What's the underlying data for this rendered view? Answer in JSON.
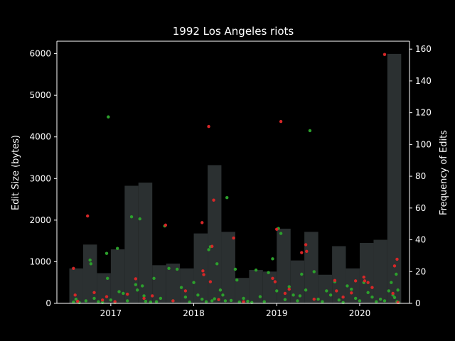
{
  "chart_data": {
    "type": "bar",
    "title": "1992 Los Angeles riots",
    "ylabel_left": "Edit Size (bytes)",
    "ylabel_right": "Frequency of Edits",
    "xlim": [
      2016.35,
      2020.6
    ],
    "ylim_left": [
      0,
      6300
    ],
    "ylim_right": [
      0,
      165
    ],
    "x_ticks": [
      2017,
      2018,
      2019,
      2020
    ],
    "y_ticks_left": [
      0,
      1000,
      2000,
      3000,
      4000,
      5000,
      6000
    ],
    "y_ticks_right": [
      0,
      20,
      40,
      60,
      80,
      100,
      120,
      140,
      160
    ],
    "bar_color": "#2b3031",
    "grid": false,
    "histogram": {
      "name": "Frequency of Edits",
      "bin_edges": [
        2016.5,
        2016.667,
        2016.833,
        2017.0,
        2017.167,
        2017.333,
        2017.5,
        2017.667,
        2017.833,
        2018.0,
        2018.167,
        2018.333,
        2018.5,
        2018.667,
        2018.833,
        2019.0,
        2019.167,
        2019.333,
        2019.5,
        2019.667,
        2019.833,
        2020.0,
        2020.167,
        2020.333,
        2020.5
      ],
      "counts": [
        22,
        37,
        19,
        34,
        74,
        76,
        24,
        25,
        22,
        44,
        87,
        45,
        16,
        21,
        20,
        47,
        27,
        45,
        18,
        36,
        22,
        38,
        40,
        157
      ]
    },
    "series": [
      {
        "name": "",
        "color": "#2ca02c",
        "points": [
          [
            2016.55,
            30
          ],
          [
            2016.58,
            100
          ],
          [
            2016.62,
            20
          ],
          [
            2016.7,
            60
          ],
          [
            2016.75,
            1040
          ],
          [
            2016.76,
            950
          ],
          [
            2016.8,
            120
          ],
          [
            2016.85,
            40
          ],
          [
            2016.9,
            20
          ],
          [
            2016.95,
            1200
          ],
          [
            2016.96,
            600
          ],
          [
            2016.97,
            4480
          ],
          [
            2017.0,
            80
          ],
          [
            2017.05,
            20
          ],
          [
            2017.08,
            1320
          ],
          [
            2017.1,
            280
          ],
          [
            2017.15,
            240
          ],
          [
            2017.2,
            60
          ],
          [
            2017.25,
            2080
          ],
          [
            2017.3,
            450
          ],
          [
            2017.32,
            320
          ],
          [
            2017.35,
            2030
          ],
          [
            2017.38,
            420
          ],
          [
            2017.4,
            180
          ],
          [
            2017.42,
            50
          ],
          [
            2017.48,
            30
          ],
          [
            2017.52,
            600
          ],
          [
            2017.55,
            40
          ],
          [
            2017.6,
            120
          ],
          [
            2017.65,
            1860
          ],
          [
            2017.7,
            840
          ],
          [
            2017.75,
            60
          ],
          [
            2017.8,
            820
          ],
          [
            2017.85,
            380
          ],
          [
            2017.9,
            150
          ],
          [
            2017.95,
            30
          ],
          [
            2018.0,
            500
          ],
          [
            2018.05,
            200
          ],
          [
            2018.1,
            100
          ],
          [
            2018.15,
            40
          ],
          [
            2018.18,
            1290
          ],
          [
            2018.2,
            1360
          ],
          [
            2018.22,
            60
          ],
          [
            2018.25,
            110
          ],
          [
            2018.28,
            950
          ],
          [
            2018.32,
            320
          ],
          [
            2018.35,
            200
          ],
          [
            2018.38,
            60
          ],
          [
            2018.4,
            2540
          ],
          [
            2018.45,
            70
          ],
          [
            2018.5,
            820
          ],
          [
            2018.52,
            560
          ],
          [
            2018.55,
            30
          ],
          [
            2018.6,
            120
          ],
          [
            2018.65,
            50
          ],
          [
            2018.7,
            20
          ],
          [
            2018.75,
            800
          ],
          [
            2018.8,
            160
          ],
          [
            2018.85,
            40
          ],
          [
            2018.9,
            740
          ],
          [
            2018.95,
            1070
          ],
          [
            2019.0,
            300
          ],
          [
            2019.02,
            1800
          ],
          [
            2019.05,
            1680
          ],
          [
            2019.1,
            90
          ],
          [
            2019.15,
            400
          ],
          [
            2019.2,
            200
          ],
          [
            2019.25,
            60
          ],
          [
            2019.28,
            180
          ],
          [
            2019.3,
            700
          ],
          [
            2019.35,
            320
          ],
          [
            2019.4,
            4150
          ],
          [
            2019.45,
            760
          ],
          [
            2019.5,
            100
          ],
          [
            2019.55,
            40
          ],
          [
            2019.6,
            300
          ],
          [
            2019.65,
            200
          ],
          [
            2019.7,
            520
          ],
          [
            2019.75,
            80
          ],
          [
            2019.8,
            20
          ],
          [
            2019.85,
            420
          ],
          [
            2019.9,
            340
          ],
          [
            2019.95,
            120
          ],
          [
            2020.0,
            60
          ],
          [
            2020.05,
            500
          ],
          [
            2020.1,
            260
          ],
          [
            2020.15,
            150
          ],
          [
            2020.2,
            40
          ],
          [
            2020.25,
            100
          ],
          [
            2020.3,
            60
          ],
          [
            2020.35,
            300
          ],
          [
            2020.38,
            500
          ],
          [
            2020.4,
            200
          ],
          [
            2020.42,
            140
          ],
          [
            2020.44,
            700
          ],
          [
            2020.45,
            40
          ],
          [
            2020.46,
            320
          ],
          [
            2020.47,
            20
          ]
        ]
      },
      {
        "name": "",
        "color": "#d62728",
        "points": [
          [
            2016.55,
            840
          ],
          [
            2016.57,
            200
          ],
          [
            2016.6,
            50
          ],
          [
            2016.72,
            2100
          ],
          [
            2016.8,
            260
          ],
          [
            2016.9,
            80
          ],
          [
            2016.95,
            160
          ],
          [
            2017.05,
            40
          ],
          [
            2017.2,
            220
          ],
          [
            2017.3,
            590
          ],
          [
            2017.4,
            120
          ],
          [
            2017.5,
            180
          ],
          [
            2017.66,
            1880
          ],
          [
            2017.75,
            60
          ],
          [
            2017.9,
            300
          ],
          [
            2018.1,
            1940
          ],
          [
            2018.11,
            780
          ],
          [
            2018.12,
            690
          ],
          [
            2018.18,
            4250
          ],
          [
            2018.2,
            520
          ],
          [
            2018.22,
            1370
          ],
          [
            2018.24,
            2480
          ],
          [
            2018.3,
            90
          ],
          [
            2018.48,
            1570
          ],
          [
            2018.6,
            40
          ],
          [
            2018.95,
            600
          ],
          [
            2018.98,
            520
          ],
          [
            2019.0,
            1780
          ],
          [
            2019.05,
            4370
          ],
          [
            2019.1,
            240
          ],
          [
            2019.15,
            340
          ],
          [
            2019.3,
            1220
          ],
          [
            2019.35,
            1410
          ],
          [
            2019.36,
            1250
          ],
          [
            2019.45,
            100
          ],
          [
            2019.7,
            550
          ],
          [
            2019.72,
            300
          ],
          [
            2019.8,
            150
          ],
          [
            2019.9,
            250
          ],
          [
            2019.95,
            540
          ],
          [
            2020.05,
            630
          ],
          [
            2020.06,
            540
          ],
          [
            2020.1,
            500
          ],
          [
            2020.15,
            380
          ],
          [
            2020.3,
            5980
          ],
          [
            2020.4,
            240
          ],
          [
            2020.42,
            900
          ],
          [
            2020.45,
            1060
          ],
          [
            2020.46,
            20
          ]
        ]
      }
    ]
  }
}
